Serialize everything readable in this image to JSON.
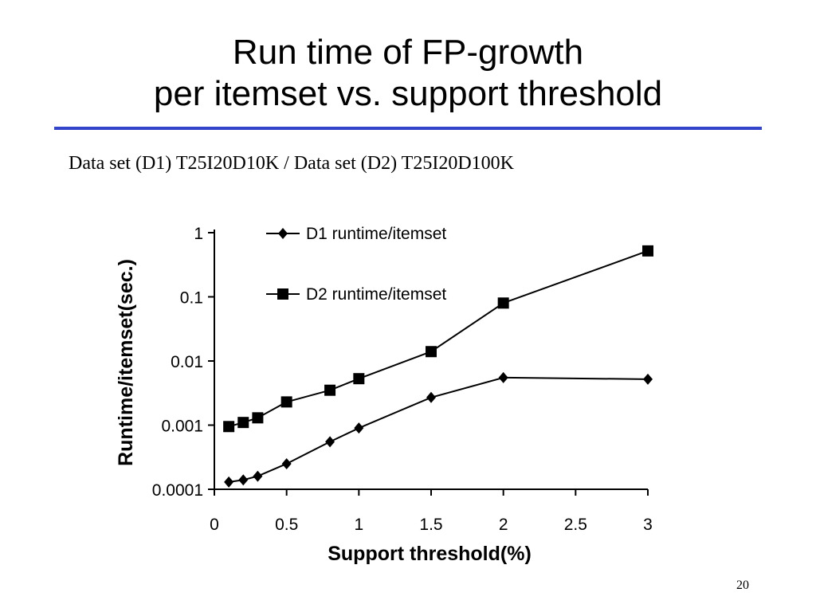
{
  "slide": {
    "title_line1": "Run time of FP-growth",
    "title_line2": "per itemset vs. support threshold",
    "subtitle": "Data set (D1) T25I20D10K / Data set (D2) T25I20D100K",
    "page_number": "20",
    "rule_color": "#3344cc"
  },
  "chart_data": {
    "type": "line",
    "xlabel": "Support threshold(%)",
    "ylabel": "Runtime/itemset(sec.)",
    "xlim": [
      0,
      3
    ],
    "ylim": [
      0.0001,
      1
    ],
    "yscale": "log",
    "x_ticks": [
      "0",
      "0.5",
      "1",
      "1.5",
      "2",
      "2.5",
      "3"
    ],
    "y_ticks": [
      "1",
      "0.1",
      "0.01",
      "0.001",
      "0.0001"
    ],
    "grid": false,
    "legend_position": "top",
    "series": [
      {
        "name": "D1 runtime/itemset",
        "marker": "diamond",
        "color": "#000000",
        "x": [
          0.1,
          0.2,
          0.3,
          0.5,
          0.8,
          1.0,
          1.5,
          2.0,
          3.0
        ],
        "y": [
          0.00013,
          0.00014,
          0.00016,
          0.00025,
          0.00055,
          0.0009,
          0.0027,
          0.0055,
          0.0052
        ]
      },
      {
        "name": "D2 runtime/itemset",
        "marker": "square",
        "color": "#000000",
        "x": [
          0.1,
          0.2,
          0.3,
          0.5,
          0.8,
          1.0,
          1.5,
          2.0,
          3.0
        ],
        "y": [
          0.00095,
          0.0011,
          0.0013,
          0.0023,
          0.0035,
          0.0053,
          0.014,
          0.08,
          0.52
        ]
      }
    ]
  }
}
